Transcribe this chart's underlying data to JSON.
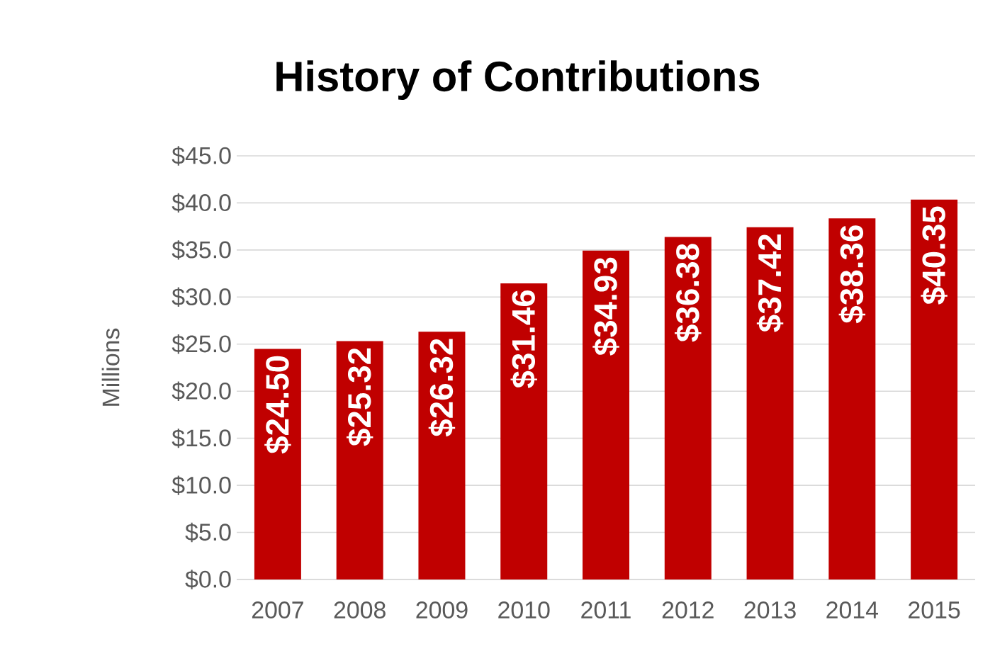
{
  "chart_data": {
    "type": "bar",
    "title": "History of Contributions",
    "ylabel": "Millions",
    "categories": [
      "2007",
      "2008",
      "2009",
      "2010",
      "2011",
      "2012",
      "2013",
      "2014",
      "2015"
    ],
    "values": [
      24.5,
      25.32,
      26.32,
      31.46,
      34.93,
      36.38,
      37.42,
      38.36,
      40.35
    ],
    "value_labels": [
      "$24.50",
      "$25.32",
      "$26.32",
      "$31.46",
      "$34.93",
      "$36.38",
      "$37.42",
      "$38.36",
      "$40.35"
    ],
    "color": "#c00000",
    "ylim": [
      0,
      45
    ],
    "yticks": [
      {
        "value": 0,
        "label": "$0.0"
      },
      {
        "value": 5,
        "label": "$5.0"
      },
      {
        "value": 10,
        "label": "$10.0"
      },
      {
        "value": 15,
        "label": "$15.0"
      },
      {
        "value": 20,
        "label": "$20.0"
      },
      {
        "value": 25,
        "label": "$25.0"
      },
      {
        "value": 30,
        "label": "$30.0"
      },
      {
        "value": 35,
        "label": "$35.0"
      },
      {
        "value": 40,
        "label": "$40.0"
      },
      {
        "value": 45,
        "label": "$45.0"
      }
    ],
    "grid": "y"
  }
}
